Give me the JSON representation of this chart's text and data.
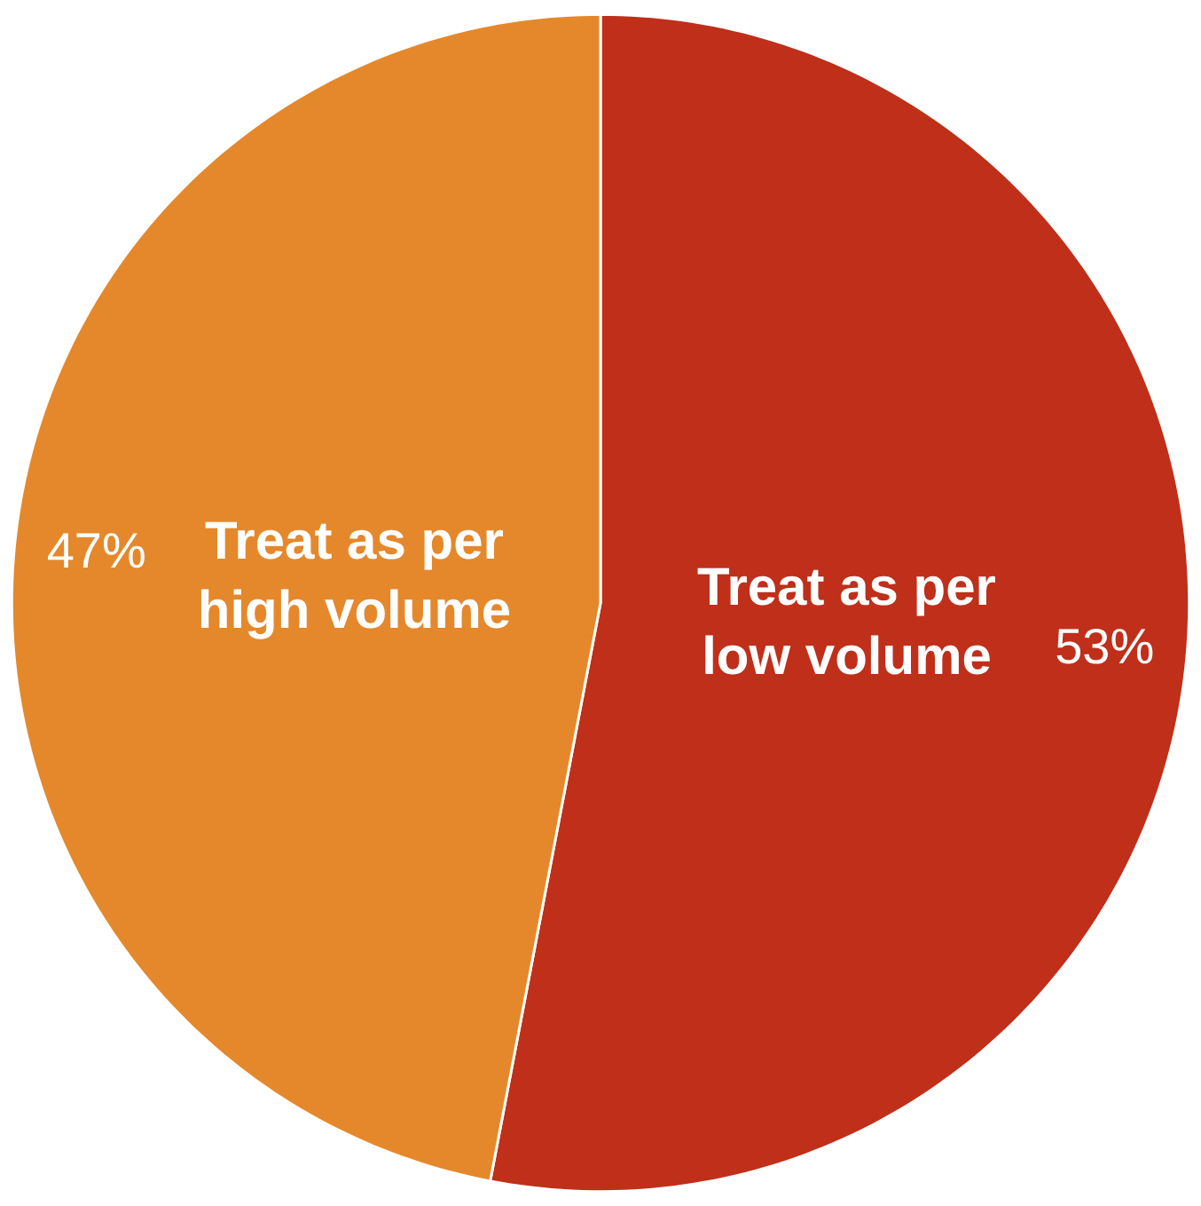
{
  "chart_data": {
    "type": "pie",
    "categories": [
      "Treat as per low volume",
      "Treat as per high volume"
    ],
    "values": [
      53,
      47
    ],
    "value_labels": [
      "53%",
      "47%"
    ],
    "colors": [
      "#bf2f1a",
      "#e5882b"
    ],
    "legend": false
  }
}
